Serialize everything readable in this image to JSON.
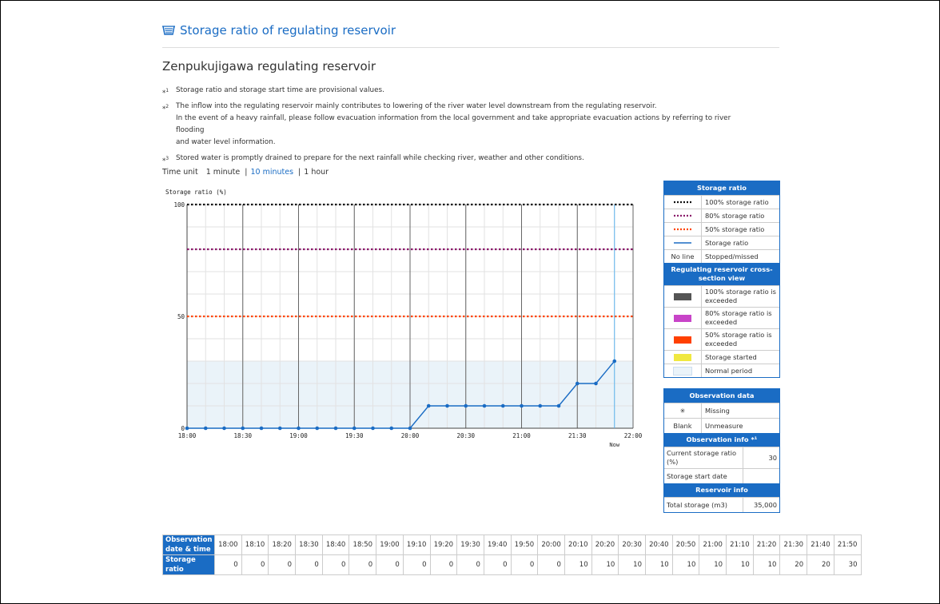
{
  "header": {
    "title": "Storage ratio of regulating reservoir"
  },
  "subtitle": "Zenpukujigawa regulating reservoir",
  "notes": [
    {
      "mark": "*",
      "sup": "1",
      "lines": [
        "Storage ratio and storage start time are provisional values."
      ]
    },
    {
      "mark": "*",
      "sup": "2",
      "lines": [
        "The inflow into the regulating reservoir mainly contributes to lowering of the river water level downstream from the regulating reservoir.",
        "In the event of a heavy rainfall, please follow evacuation information from the local government and take appropriate evacuation actions by referring to river flooding",
        "and water level information."
      ]
    },
    {
      "mark": "*",
      "sup": "3",
      "lines": [
        "Stored water is promptly drained to prepare for the next rainfall while checking river, weather and other conditions."
      ]
    }
  ],
  "time_unit": {
    "label": "Time unit",
    "options": [
      "1 minute",
      "10 minutes",
      "1 hour"
    ],
    "selected": "10 minutes"
  },
  "chart_data": {
    "type": "line",
    "ylabel": "Storage ratio (%)",
    "ylim": [
      0,
      100
    ],
    "yticks": [
      "0",
      "50",
      "100"
    ],
    "x": [
      "18:00",
      "18:10",
      "18:20",
      "18:30",
      "18:40",
      "18:50",
      "19:00",
      "19:10",
      "19:20",
      "19:30",
      "19:40",
      "19:50",
      "20:00",
      "20:10",
      "20:20",
      "20:30",
      "20:40",
      "20:50",
      "21:00",
      "21:10",
      "21:20",
      "21:30",
      "21:40",
      "21:50"
    ],
    "xtick_labels": [
      "18:00",
      "18:30",
      "19:00",
      "19:30",
      "20:00",
      "20:30",
      "21:00",
      "21:30",
      "22:00"
    ],
    "now_label": "Now",
    "series": [
      {
        "name": "Storage ratio",
        "values": [
          0,
          0,
          0,
          0,
          0,
          0,
          0,
          0,
          0,
          0,
          0,
          0,
          0,
          10,
          10,
          10,
          10,
          10,
          10,
          10,
          10,
          20,
          20,
          30
        ],
        "color": "#1a6cc4"
      }
    ],
    "reference_lines": [
      {
        "name": "100% storage ratio",
        "value": 100,
        "color": "#111111"
      },
      {
        "name": "80% storage ratio",
        "value": 80,
        "color": "#8b1a6b"
      },
      {
        "name": "50% storage ratio",
        "value": 50,
        "color": "#ff4500"
      }
    ],
    "normal_band_max": 30,
    "grid": true
  },
  "legend": {
    "storage_ratio_header": "Storage ratio",
    "lines": [
      {
        "label": "100% storage ratio",
        "color": "#111111",
        "style": "dotted"
      },
      {
        "label": "80% storage ratio",
        "color": "#8b1a6b",
        "style": "dotted"
      },
      {
        "label": "50% storage ratio",
        "color": "#ff4500",
        "style": "dotted"
      },
      {
        "label": "Storage ratio",
        "color": "#1a6cc4",
        "style": "solid"
      },
      {
        "label": "Stopped/missed",
        "symbol_text": "No line",
        "style": "none"
      }
    ],
    "cross_section_header": "Regulating reservoir cross-section view",
    "swatches": [
      {
        "label": "100% storage ratio is exceeded",
        "color": "#555555"
      },
      {
        "label": "80% storage ratio is exceeded",
        "color": "#c844c8"
      },
      {
        "label": "50% storage ratio is exceeded",
        "color": "#ff4000"
      },
      {
        "label": "Storage started",
        "color": "#f0e840"
      },
      {
        "label": "Normal period",
        "color": "#eaf3f9"
      }
    ]
  },
  "observation_data": {
    "header": "Observation data",
    "rows": [
      {
        "symbol": "✳",
        "label": "Missing"
      },
      {
        "symbol": "Blank",
        "label": "Unmeasure"
      }
    ]
  },
  "observation_info": {
    "header": "Observation info *¹",
    "rows": [
      {
        "key": "Current storage ratio (%)",
        "value": "30"
      },
      {
        "key": "Storage start date",
        "value": ""
      }
    ]
  },
  "reservoir_info": {
    "header": "Reservoir info",
    "rows": [
      {
        "key": "Total storage (m3)",
        "value": "35,000"
      }
    ]
  },
  "table": {
    "row_header_time": "Observation date & time",
    "row_header_ratio": "Storage ratio",
    "times": [
      "18:00",
      "18:10",
      "18:20",
      "18:30",
      "18:40",
      "18:50",
      "19:00",
      "19:10",
      "19:20",
      "19:30",
      "19:40",
      "19:50",
      "20:00",
      "20:10",
      "20:20",
      "20:30",
      "20:40",
      "20:50",
      "21:00",
      "21:10",
      "21:20",
      "21:30",
      "21:40",
      "21:50"
    ],
    "ratios": [
      "0",
      "0",
      "0",
      "0",
      "0",
      "0",
      "0",
      "0",
      "0",
      "0",
      "0",
      "0",
      "0",
      "10",
      "10",
      "10",
      "10",
      "10",
      "10",
      "10",
      "10",
      "20",
      "20",
      "30"
    ]
  }
}
